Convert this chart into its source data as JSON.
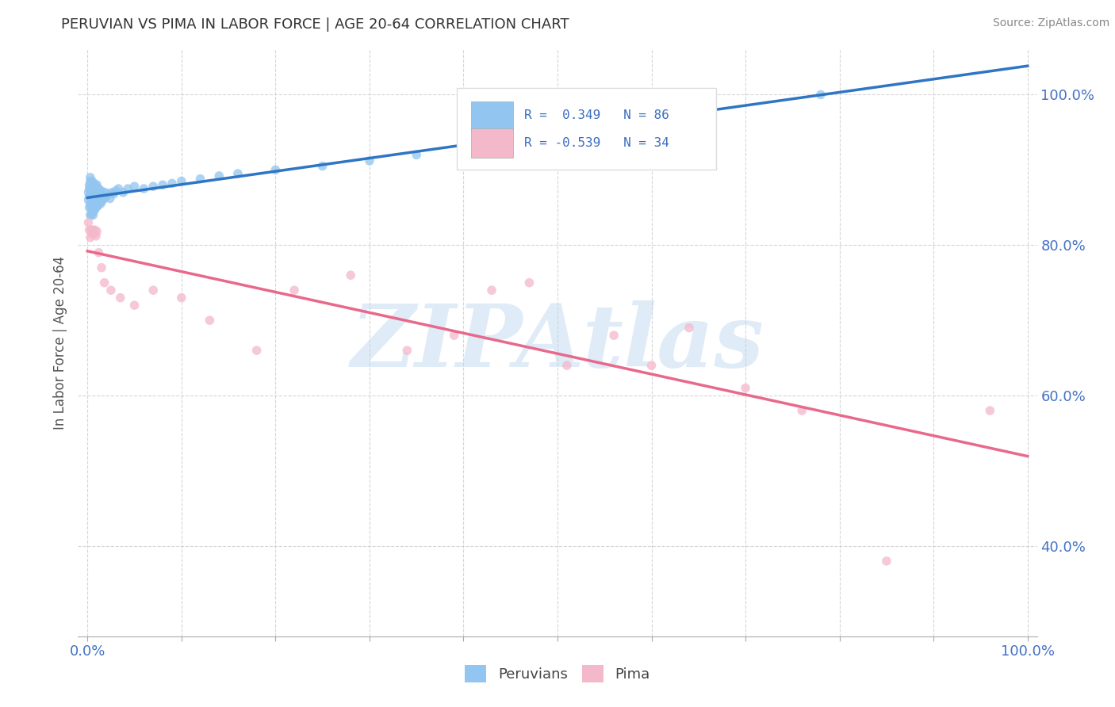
{
  "title": "PERUVIAN VS PIMA IN LABOR FORCE | AGE 20-64 CORRELATION CHART",
  "source_text": "Source: ZipAtlas.com",
  "ylabel": "In Labor Force | Age 20-64",
  "xlim": [
    -0.01,
    1.01
  ],
  "ylim": [
    0.28,
    1.06
  ],
  "xticks": [
    0.0,
    0.1,
    0.2,
    0.3,
    0.4,
    0.5,
    0.6,
    0.7,
    0.8,
    0.9,
    1.0
  ],
  "yticks": [
    0.4,
    0.6,
    0.8,
    1.0
  ],
  "ytick_labels": [
    "40.0%",
    "60.0%",
    "80.0%",
    "100.0%"
  ],
  "peruvian_color": "#92c5f0",
  "pima_color": "#f4b8cb",
  "peruvian_line_color": "#2e75c3",
  "pima_line_color": "#e8698a",
  "R_peruvian": 0.349,
  "N_peruvian": 86,
  "R_pima": -0.539,
  "N_pima": 34,
  "background_color": "#ffffff",
  "grid_color": "#cccccc",
  "watermark_text": "ZIPAtlas",
  "peruvian_x": [
    0.001,
    0.001,
    0.002,
    0.002,
    0.002,
    0.002,
    0.003,
    0.003,
    0.003,
    0.003,
    0.003,
    0.003,
    0.004,
    0.004,
    0.004,
    0.004,
    0.004,
    0.005,
    0.005,
    0.005,
    0.005,
    0.005,
    0.006,
    0.006,
    0.006,
    0.006,
    0.006,
    0.007,
    0.007,
    0.007,
    0.007,
    0.007,
    0.008,
    0.008,
    0.008,
    0.008,
    0.009,
    0.009,
    0.009,
    0.009,
    0.01,
    0.01,
    0.01,
    0.01,
    0.011,
    0.011,
    0.011,
    0.012,
    0.012,
    0.012,
    0.013,
    0.013,
    0.014,
    0.014,
    0.015,
    0.015,
    0.016,
    0.017,
    0.018,
    0.019,
    0.02,
    0.022,
    0.024,
    0.026,
    0.028,
    0.03,
    0.033,
    0.038,
    0.043,
    0.05,
    0.06,
    0.07,
    0.08,
    0.09,
    0.1,
    0.12,
    0.14,
    0.16,
    0.2,
    0.25,
    0.3,
    0.35,
    0.4,
    0.5,
    0.65,
    0.78
  ],
  "peruvian_y": [
    0.86,
    0.87,
    0.85,
    0.865,
    0.875,
    0.88,
    0.84,
    0.855,
    0.865,
    0.875,
    0.885,
    0.89,
    0.84,
    0.85,
    0.86,
    0.87,
    0.88,
    0.845,
    0.855,
    0.865,
    0.875,
    0.885,
    0.84,
    0.85,
    0.858,
    0.868,
    0.878,
    0.845,
    0.855,
    0.862,
    0.872,
    0.882,
    0.848,
    0.857,
    0.866,
    0.876,
    0.85,
    0.86,
    0.868,
    0.878,
    0.852,
    0.862,
    0.87,
    0.88,
    0.852,
    0.862,
    0.872,
    0.855,
    0.865,
    0.875,
    0.857,
    0.867,
    0.855,
    0.87,
    0.858,
    0.872,
    0.86,
    0.865,
    0.862,
    0.87,
    0.865,
    0.868,
    0.862,
    0.87,
    0.868,
    0.872,
    0.875,
    0.87,
    0.875,
    0.878,
    0.875,
    0.878,
    0.88,
    0.882,
    0.885,
    0.888,
    0.892,
    0.895,
    0.9,
    0.905,
    0.912,
    0.92,
    0.935,
    0.95,
    0.975,
    1.0
  ],
  "pima_x": [
    0.001,
    0.002,
    0.003,
    0.004,
    0.005,
    0.006,
    0.007,
    0.008,
    0.009,
    0.01,
    0.012,
    0.015,
    0.018,
    0.025,
    0.035,
    0.05,
    0.07,
    0.1,
    0.13,
    0.18,
    0.22,
    0.28,
    0.34,
    0.39,
    0.43,
    0.47,
    0.51,
    0.56,
    0.6,
    0.64,
    0.7,
    0.76,
    0.85,
    0.96
  ],
  "pima_y": [
    0.83,
    0.82,
    0.81,
    0.82,
    0.815,
    0.82,
    0.815,
    0.82,
    0.812,
    0.818,
    0.79,
    0.77,
    0.75,
    0.74,
    0.73,
    0.72,
    0.74,
    0.73,
    0.7,
    0.66,
    0.74,
    0.76,
    0.66,
    0.68,
    0.74,
    0.75,
    0.64,
    0.68,
    0.64,
    0.69,
    0.61,
    0.58,
    0.38,
    0.58
  ]
}
